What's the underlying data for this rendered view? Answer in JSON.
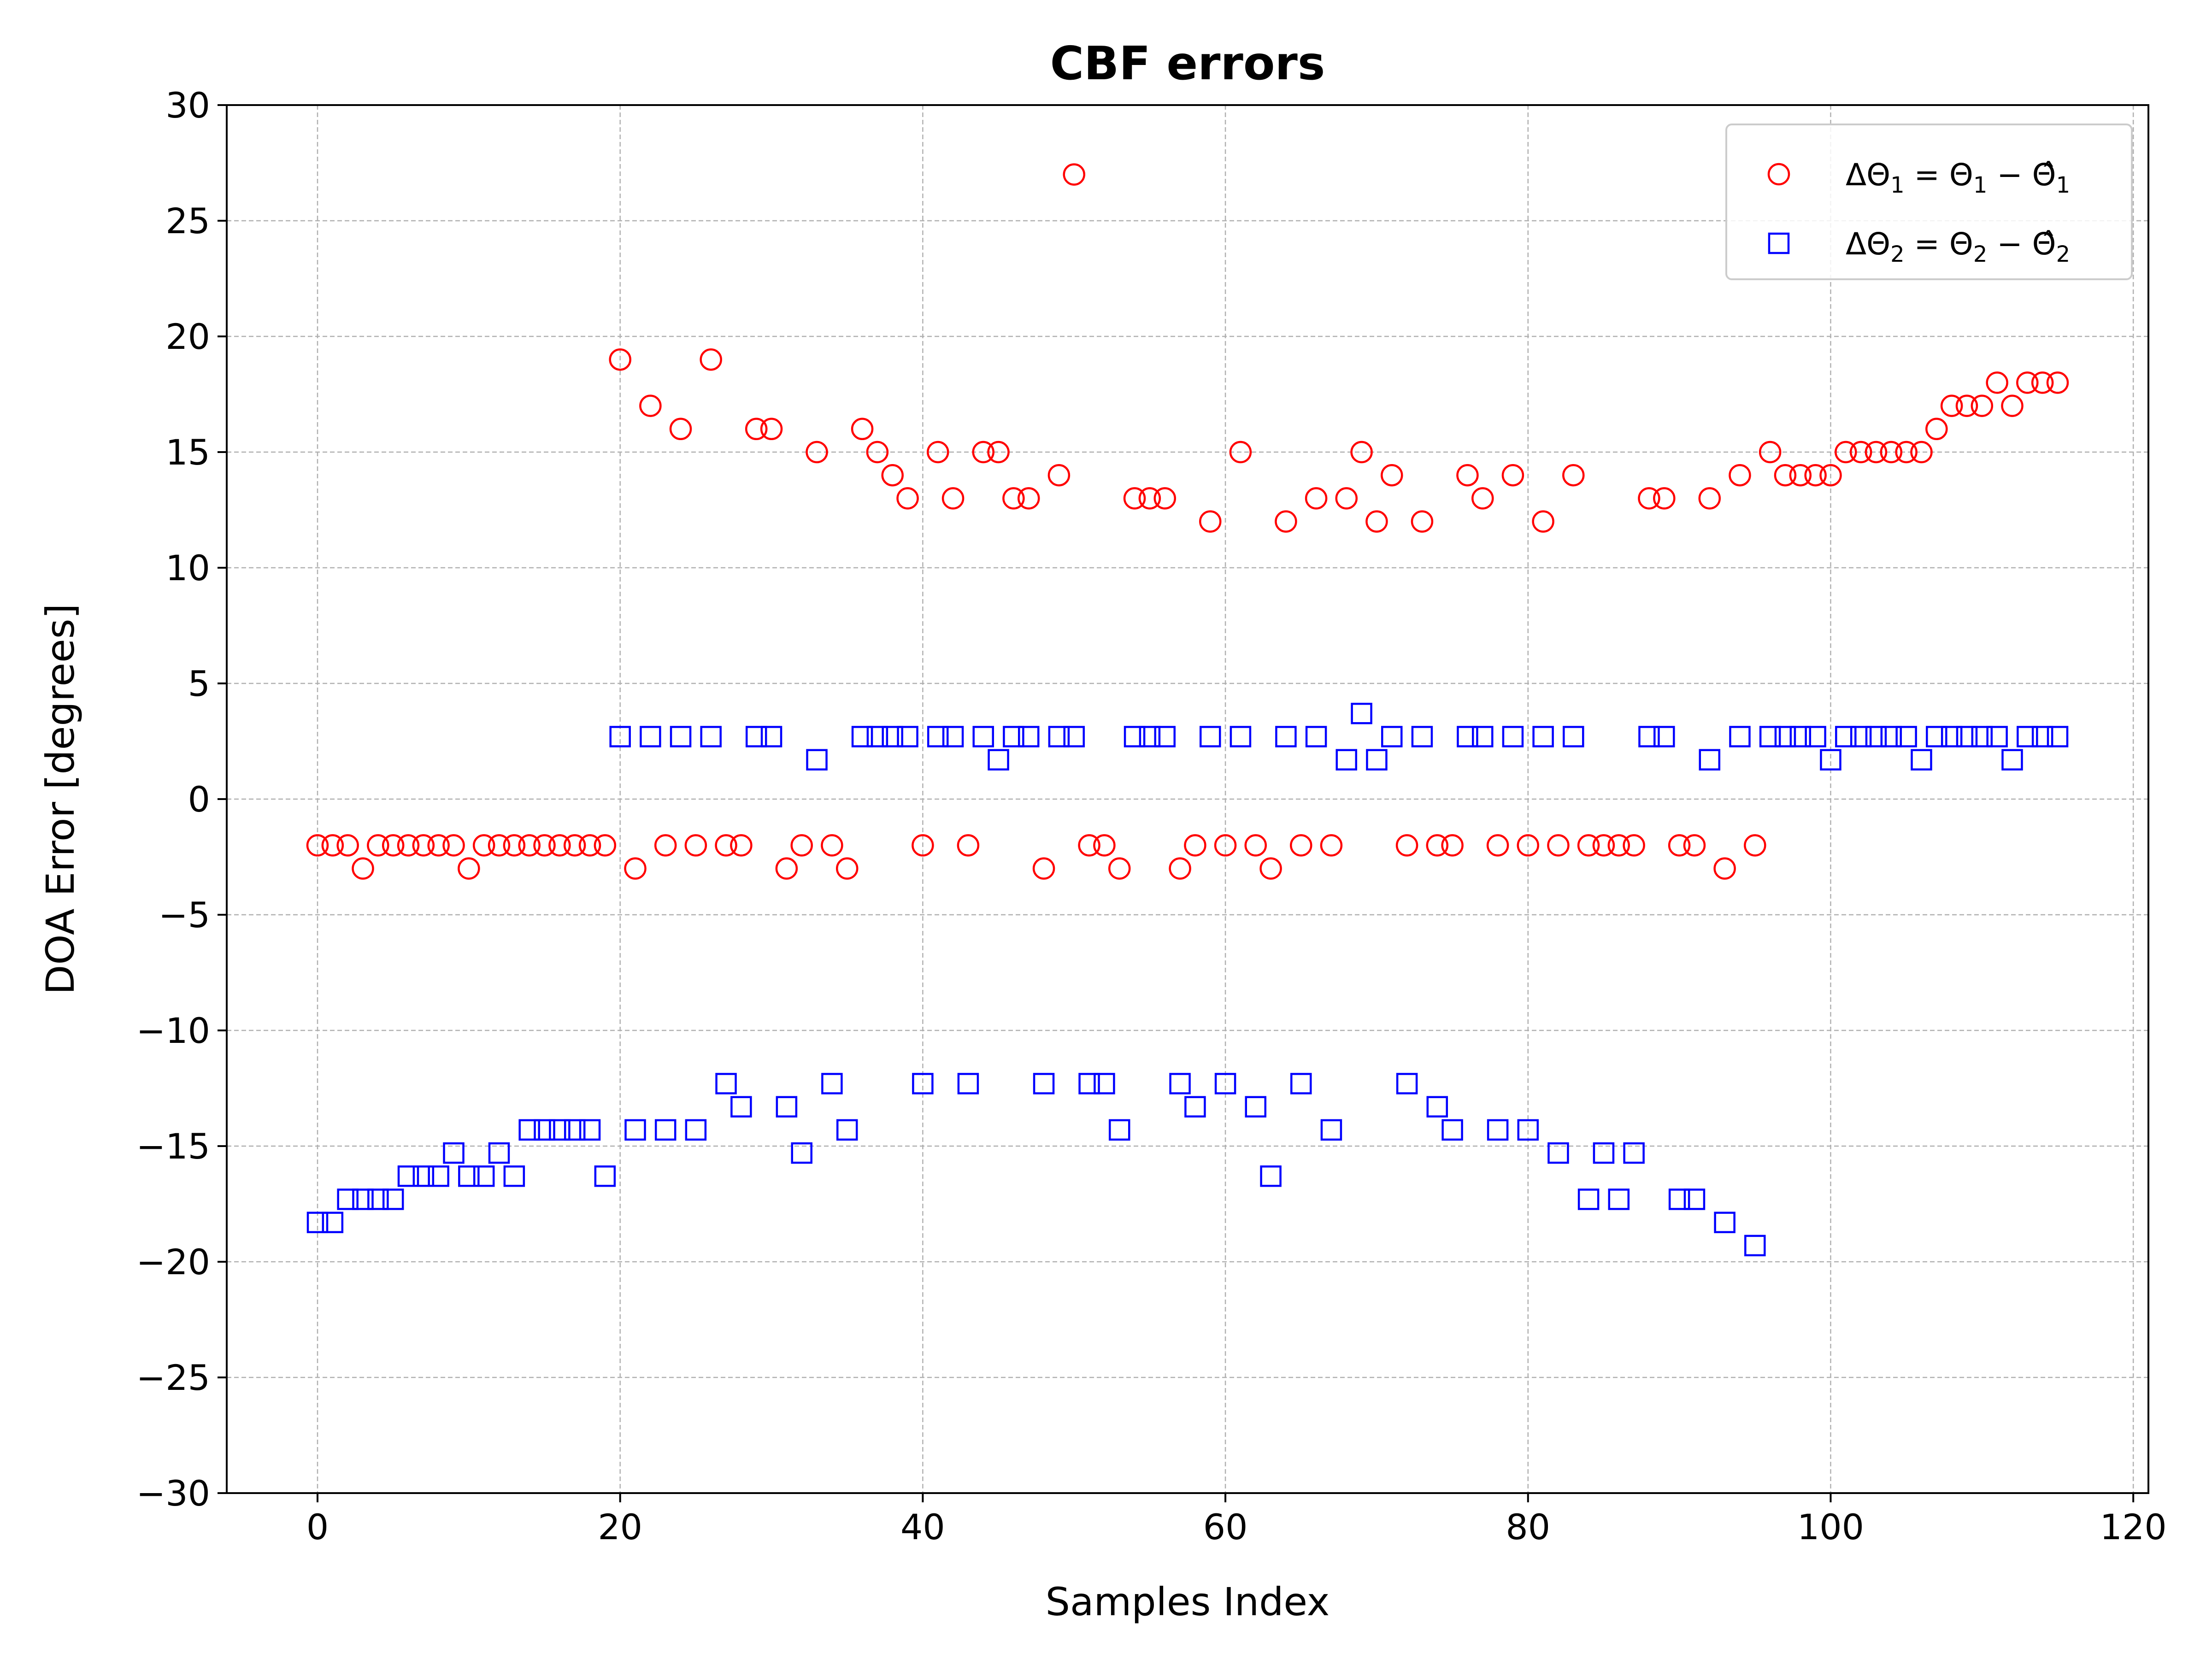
{
  "chart_data": {
    "type": "scatter",
    "title": "CBF errors",
    "xlabel": "Samples Index",
    "ylabel": "DOA Error [degrees]",
    "xlim": [
      -6,
      121
    ],
    "ylim": [
      -30,
      30
    ],
    "xticks": [
      0,
      20,
      40,
      60,
      80,
      100,
      120
    ],
    "yticks": [
      -30,
      -25,
      -20,
      -15,
      -10,
      -5,
      0,
      5,
      10,
      15,
      20,
      25,
      30
    ],
    "xtick_labels": [
      "0",
      "20",
      "40",
      "60",
      "80",
      "100",
      "120"
    ],
    "ytick_labels": [
      "−30",
      "−25",
      "−20",
      "−15",
      "−10",
      "−5",
      "0",
      "5",
      "10",
      "15",
      "20",
      "25",
      "30"
    ],
    "grid": true,
    "legend_position": "top-right",
    "series": [
      {
        "name": "ΔΘ1 = Θ1 − Θ̂1",
        "legend": {
          "main": "ΔΘ",
          "sub1": "1",
          "mid": " = Θ",
          "sub2": "1",
          "minus": " − Θ̂",
          "sub3": "1"
        },
        "marker": "circle",
        "color": "#ff0000",
        "points": [
          [
            0,
            -2
          ],
          [
            1,
            -2
          ],
          [
            2,
            -2
          ],
          [
            3,
            -3
          ],
          [
            4,
            -2
          ],
          [
            5,
            -2
          ],
          [
            6,
            -2
          ],
          [
            7,
            -2
          ],
          [
            8,
            -2
          ],
          [
            9,
            -2
          ],
          [
            10,
            -3
          ],
          [
            11,
            -2
          ],
          [
            12,
            -2
          ],
          [
            13,
            -2
          ],
          [
            14,
            -2
          ],
          [
            15,
            -2
          ],
          [
            16,
            -2
          ],
          [
            17,
            -2
          ],
          [
            18,
            -2
          ],
          [
            19,
            -2
          ],
          [
            20,
            19
          ],
          [
            21,
            -3
          ],
          [
            22,
            17
          ],
          [
            23,
            -2
          ],
          [
            24,
            16
          ],
          [
            25,
            -2
          ],
          [
            26,
            19
          ],
          [
            27,
            -2
          ],
          [
            28,
            -2
          ],
          [
            29,
            16
          ],
          [
            30,
            16
          ],
          [
            31,
            -3
          ],
          [
            32,
            -2
          ],
          [
            33,
            15
          ],
          [
            34,
            -2
          ],
          [
            35,
            -3
          ],
          [
            36,
            16
          ],
          [
            37,
            15
          ],
          [
            38,
            14
          ],
          [
            39,
            13
          ],
          [
            40,
            -2
          ],
          [
            41,
            15
          ],
          [
            42,
            13
          ],
          [
            43,
            -2
          ],
          [
            44,
            15
          ],
          [
            45,
            15
          ],
          [
            46,
            13
          ],
          [
            47,
            13
          ],
          [
            48,
            -3
          ],
          [
            49,
            14
          ],
          [
            50,
            27
          ],
          [
            51,
            -2
          ],
          [
            52,
            -2
          ],
          [
            53,
            -3
          ],
          [
            54,
            13
          ],
          [
            55,
            13
          ],
          [
            56,
            13
          ],
          [
            57,
            -3
          ],
          [
            58,
            -2
          ],
          [
            59,
            12
          ],
          [
            60,
            -2
          ],
          [
            61,
            15
          ],
          [
            62,
            -2
          ],
          [
            63,
            -3
          ],
          [
            64,
            12
          ],
          [
            65,
            -2
          ],
          [
            66,
            13
          ],
          [
            67,
            -2
          ],
          [
            68,
            13
          ],
          [
            69,
            15
          ],
          [
            70,
            12
          ],
          [
            71,
            14
          ],
          [
            72,
            -2
          ],
          [
            73,
            12
          ],
          [
            74,
            -2
          ],
          [
            75,
            -2
          ],
          [
            76,
            14
          ],
          [
            77,
            13
          ],
          [
            78,
            -2
          ],
          [
            79,
            14
          ],
          [
            80,
            -2
          ],
          [
            81,
            12
          ],
          [
            82,
            -2
          ],
          [
            83,
            14
          ],
          [
            84,
            -2
          ],
          [
            85,
            -2
          ],
          [
            86,
            -2
          ],
          [
            87,
            -2
          ],
          [
            88,
            13
          ],
          [
            89,
            13
          ],
          [
            90,
            -2
          ],
          [
            91,
            -2
          ],
          [
            92,
            13
          ],
          [
            93,
            -3
          ],
          [
            94,
            14
          ],
          [
            95,
            -2
          ],
          [
            96,
            15
          ],
          [
            97,
            14
          ],
          [
            98,
            14
          ],
          [
            99,
            14
          ],
          [
            100,
            14
          ],
          [
            101,
            15
          ],
          [
            102,
            15
          ],
          [
            103,
            15
          ],
          [
            104,
            15
          ],
          [
            105,
            15
          ],
          [
            106,
            15
          ],
          [
            107,
            16
          ],
          [
            108,
            17
          ],
          [
            109,
            17
          ],
          [
            110,
            17
          ],
          [
            111,
            18
          ],
          [
            112,
            17
          ],
          [
            113,
            18
          ],
          [
            114,
            18
          ],
          [
            115,
            18
          ]
        ]
      },
      {
        "name": "ΔΘ2 = Θ2 − Θ̂2",
        "legend": {
          "main": "ΔΘ",
          "sub1": "2",
          "mid": " = Θ",
          "sub2": "2",
          "minus": " − Θ̂",
          "sub3": "2"
        },
        "marker": "square",
        "color": "#0000ff",
        "points": [
          [
            0,
            -18.3
          ],
          [
            1,
            -18.3
          ],
          [
            2,
            -17.3
          ],
          [
            3,
            -17.3
          ],
          [
            4,
            -17.3
          ],
          [
            5,
            -17.3
          ],
          [
            6,
            -16.3
          ],
          [
            7,
            -16.3
          ],
          [
            8,
            -16.3
          ],
          [
            9,
            -15.3
          ],
          [
            10,
            -16.3
          ],
          [
            11,
            -16.3
          ],
          [
            12,
            -15.3
          ],
          [
            13,
            -16.3
          ],
          [
            14,
            -14.3
          ],
          [
            15,
            -14.3
          ],
          [
            16,
            -14.3
          ],
          [
            17,
            -14.3
          ],
          [
            18,
            -14.3
          ],
          [
            19,
            -16.3
          ],
          [
            20,
            2.7
          ],
          [
            21,
            -14.3
          ],
          [
            22,
            2.7
          ],
          [
            23,
            -14.3
          ],
          [
            24,
            2.7
          ],
          [
            25,
            -14.3
          ],
          [
            26,
            2.7
          ],
          [
            27,
            -12.3
          ],
          [
            28,
            -13.3
          ],
          [
            29,
            2.7
          ],
          [
            30,
            2.7
          ],
          [
            31,
            -13.3
          ],
          [
            32,
            -15.3
          ],
          [
            33,
            1.7
          ],
          [
            34,
            -12.3
          ],
          [
            35,
            -14.3
          ],
          [
            36,
            2.7
          ],
          [
            37,
            2.7
          ],
          [
            38,
            2.7
          ],
          [
            39,
            2.7
          ],
          [
            40,
            -12.3
          ],
          [
            41,
            2.7
          ],
          [
            42,
            2.7
          ],
          [
            43,
            -12.3
          ],
          [
            44,
            2.7
          ],
          [
            45,
            1.7
          ],
          [
            46,
            2.7
          ],
          [
            47,
            2.7
          ],
          [
            48,
            -12.3
          ],
          [
            49,
            2.7
          ],
          [
            50,
            2.7
          ],
          [
            51,
            -12.3
          ],
          [
            52,
            -12.3
          ],
          [
            53,
            -14.3
          ],
          [
            54,
            2.7
          ],
          [
            55,
            2.7
          ],
          [
            56,
            2.7
          ],
          [
            57,
            -12.3
          ],
          [
            58,
            -13.3
          ],
          [
            59,
            2.7
          ],
          [
            60,
            -12.3
          ],
          [
            61,
            2.7
          ],
          [
            62,
            -13.3
          ],
          [
            63,
            -16.3
          ],
          [
            64,
            2.7
          ],
          [
            65,
            -12.3
          ],
          [
            66,
            2.7
          ],
          [
            67,
            -14.3
          ],
          [
            68,
            1.7
          ],
          [
            69,
            3.7
          ],
          [
            70,
            1.7
          ],
          [
            71,
            2.7
          ],
          [
            72,
            -12.3
          ],
          [
            73,
            2.7
          ],
          [
            74,
            -13.3
          ],
          [
            75,
            -14.3
          ],
          [
            76,
            2.7
          ],
          [
            77,
            2.7
          ],
          [
            78,
            -14.3
          ],
          [
            79,
            2.7
          ],
          [
            80,
            -14.3
          ],
          [
            81,
            2.7
          ],
          [
            82,
            -15.3
          ],
          [
            83,
            2.7
          ],
          [
            84,
            -17.3
          ],
          [
            85,
            -15.3
          ],
          [
            86,
            -17.3
          ],
          [
            87,
            -15.3
          ],
          [
            88,
            2.7
          ],
          [
            89,
            2.7
          ],
          [
            90,
            -17.3
          ],
          [
            91,
            -17.3
          ],
          [
            92,
            1.7
          ],
          [
            93,
            -18.3
          ],
          [
            94,
            2.7
          ],
          [
            95,
            -19.3
          ],
          [
            96,
            2.7
          ],
          [
            97,
            2.7
          ],
          [
            98,
            2.7
          ],
          [
            99,
            2.7
          ],
          [
            100,
            1.7
          ],
          [
            101,
            2.7
          ],
          [
            102,
            2.7
          ],
          [
            103,
            2.7
          ],
          [
            104,
            2.7
          ],
          [
            105,
            2.7
          ],
          [
            106,
            1.7
          ],
          [
            107,
            2.7
          ],
          [
            108,
            2.7
          ],
          [
            109,
            2.7
          ],
          [
            110,
            2.7
          ],
          [
            111,
            2.7
          ],
          [
            112,
            1.7
          ],
          [
            113,
            2.7
          ],
          [
            114,
            2.7
          ],
          [
            115,
            2.7
          ]
        ]
      }
    ]
  }
}
